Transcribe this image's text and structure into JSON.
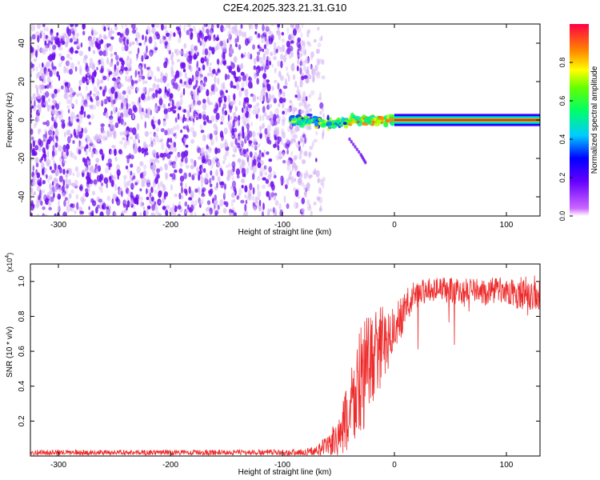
{
  "title": "C2E4.2025.323.21.31.G10",
  "colors": {
    "trace": "#ee2b2b",
    "scatter": "#7010ee",
    "pale": "#d4b4f4"
  },
  "chart_data": [
    {
      "type": "heatmap",
      "xlabel": "Height of straight line (km)",
      "ylabel": "Frequency (Hz)",
      "xlim": [
        -325,
        130
      ],
      "ylim": [
        -50,
        50
      ],
      "xticks": [
        -300,
        -200,
        -100,
        0,
        100
      ],
      "yticks": [
        -40,
        -20,
        0,
        20,
        40
      ],
      "colorbar": {
        "label": "Normalized spectral amplitude",
        "range": [
          0,
          1
        ],
        "ticks": [
          "0.0",
          "0.2",
          "0.4",
          "0.6",
          "0.8"
        ]
      },
      "regions": [
        {
          "name": "noise",
          "x": [
            -325,
            -75
          ],
          "y": [
            -50,
            50
          ],
          "amplitude": 0.2
        },
        {
          "name": "signal-clusters",
          "x": [
            -95,
            0
          ],
          "y": [
            -6,
            6
          ],
          "amplitude": 0.6
        },
        {
          "name": "carrier",
          "x": [
            0,
            130
          ],
          "y": [
            -1,
            1
          ],
          "amplitude": 1.0
        }
      ],
      "tail_points": [
        [
          -40,
          -10
        ],
        [
          -30,
          -18
        ],
        [
          -25,
          -23
        ]
      ]
    },
    {
      "type": "line",
      "xlabel": "Height of straight line (km)",
      "ylabel": "SNR (10 * v/v)",
      "scale_label": "(x10",
      "scale_exp": "4",
      "xlim": [
        -325,
        130
      ],
      "ylim": [
        0,
        1.1
      ],
      "xticks": [
        -300,
        -200,
        -100,
        0,
        100
      ],
      "yticks": [
        "0.2",
        "0.4",
        "0.6",
        "0.8",
        "1.0"
      ],
      "series": [
        {
          "x": [
            -325,
            -250,
            -150,
            -80,
            -70,
            -60,
            -50,
            -45,
            -40,
            -35,
            -30,
            -25,
            -20,
            -15,
            -10,
            -5,
            0,
            5,
            10,
            15,
            20,
            30,
            40,
            50,
            60,
            70,
            80,
            90,
            100,
            110,
            120,
            130
          ],
          "y": [
            0.02,
            0.02,
            0.02,
            0.02,
            0.03,
            0.06,
            0.1,
            0.16,
            0.25,
            0.35,
            0.42,
            0.5,
            0.55,
            0.6,
            0.64,
            0.68,
            0.72,
            0.78,
            0.85,
            0.9,
            0.93,
            0.95,
            0.96,
            0.95,
            0.94,
            0.96,
            0.93,
            0.95,
            0.94,
            0.93,
            0.94,
            0.92
          ],
          "amp": [
            0.015,
            0.015,
            0.015,
            0.02,
            0.03,
            0.06,
            0.12,
            0.18,
            0.25,
            0.3,
            0.35,
            0.3,
            0.28,
            0.25,
            0.22,
            0.18,
            0.15,
            0.12,
            0.1,
            0.09,
            0.08,
            0.07,
            0.07,
            0.08,
            0.08,
            0.07,
            0.08,
            0.08,
            0.08,
            0.09,
            0.1,
            0.12
          ]
        }
      ]
    }
  ]
}
